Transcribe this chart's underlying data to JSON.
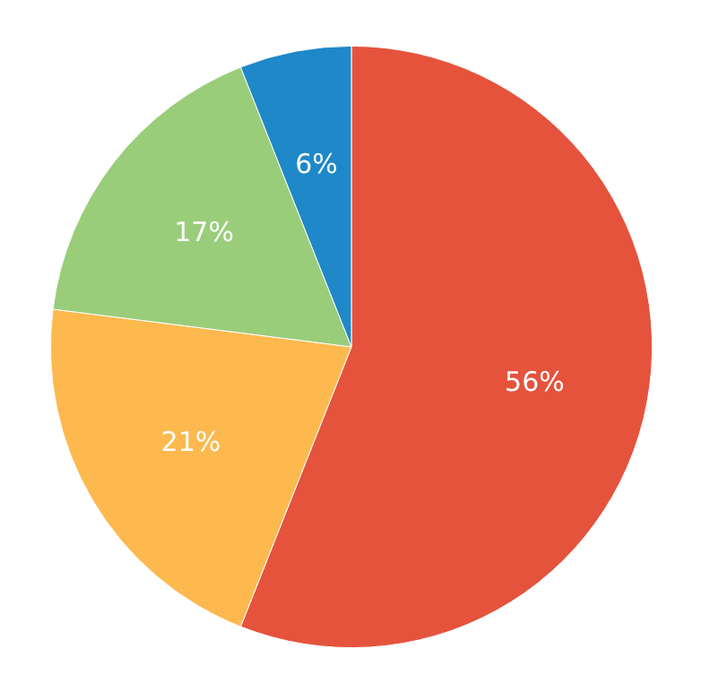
{
  "chart_data": {
    "type": "pie",
    "categories": [
      null,
      null,
      null,
      null
    ],
    "values": [
      56,
      21,
      17,
      6
    ],
    "colors": [
      "#e5533d",
      "#fdb94e",
      "#9acd7a",
      "#1e88c8"
    ],
    "value_labels": [
      "56%",
      "21%",
      "17%",
      "6%"
    ]
  }
}
